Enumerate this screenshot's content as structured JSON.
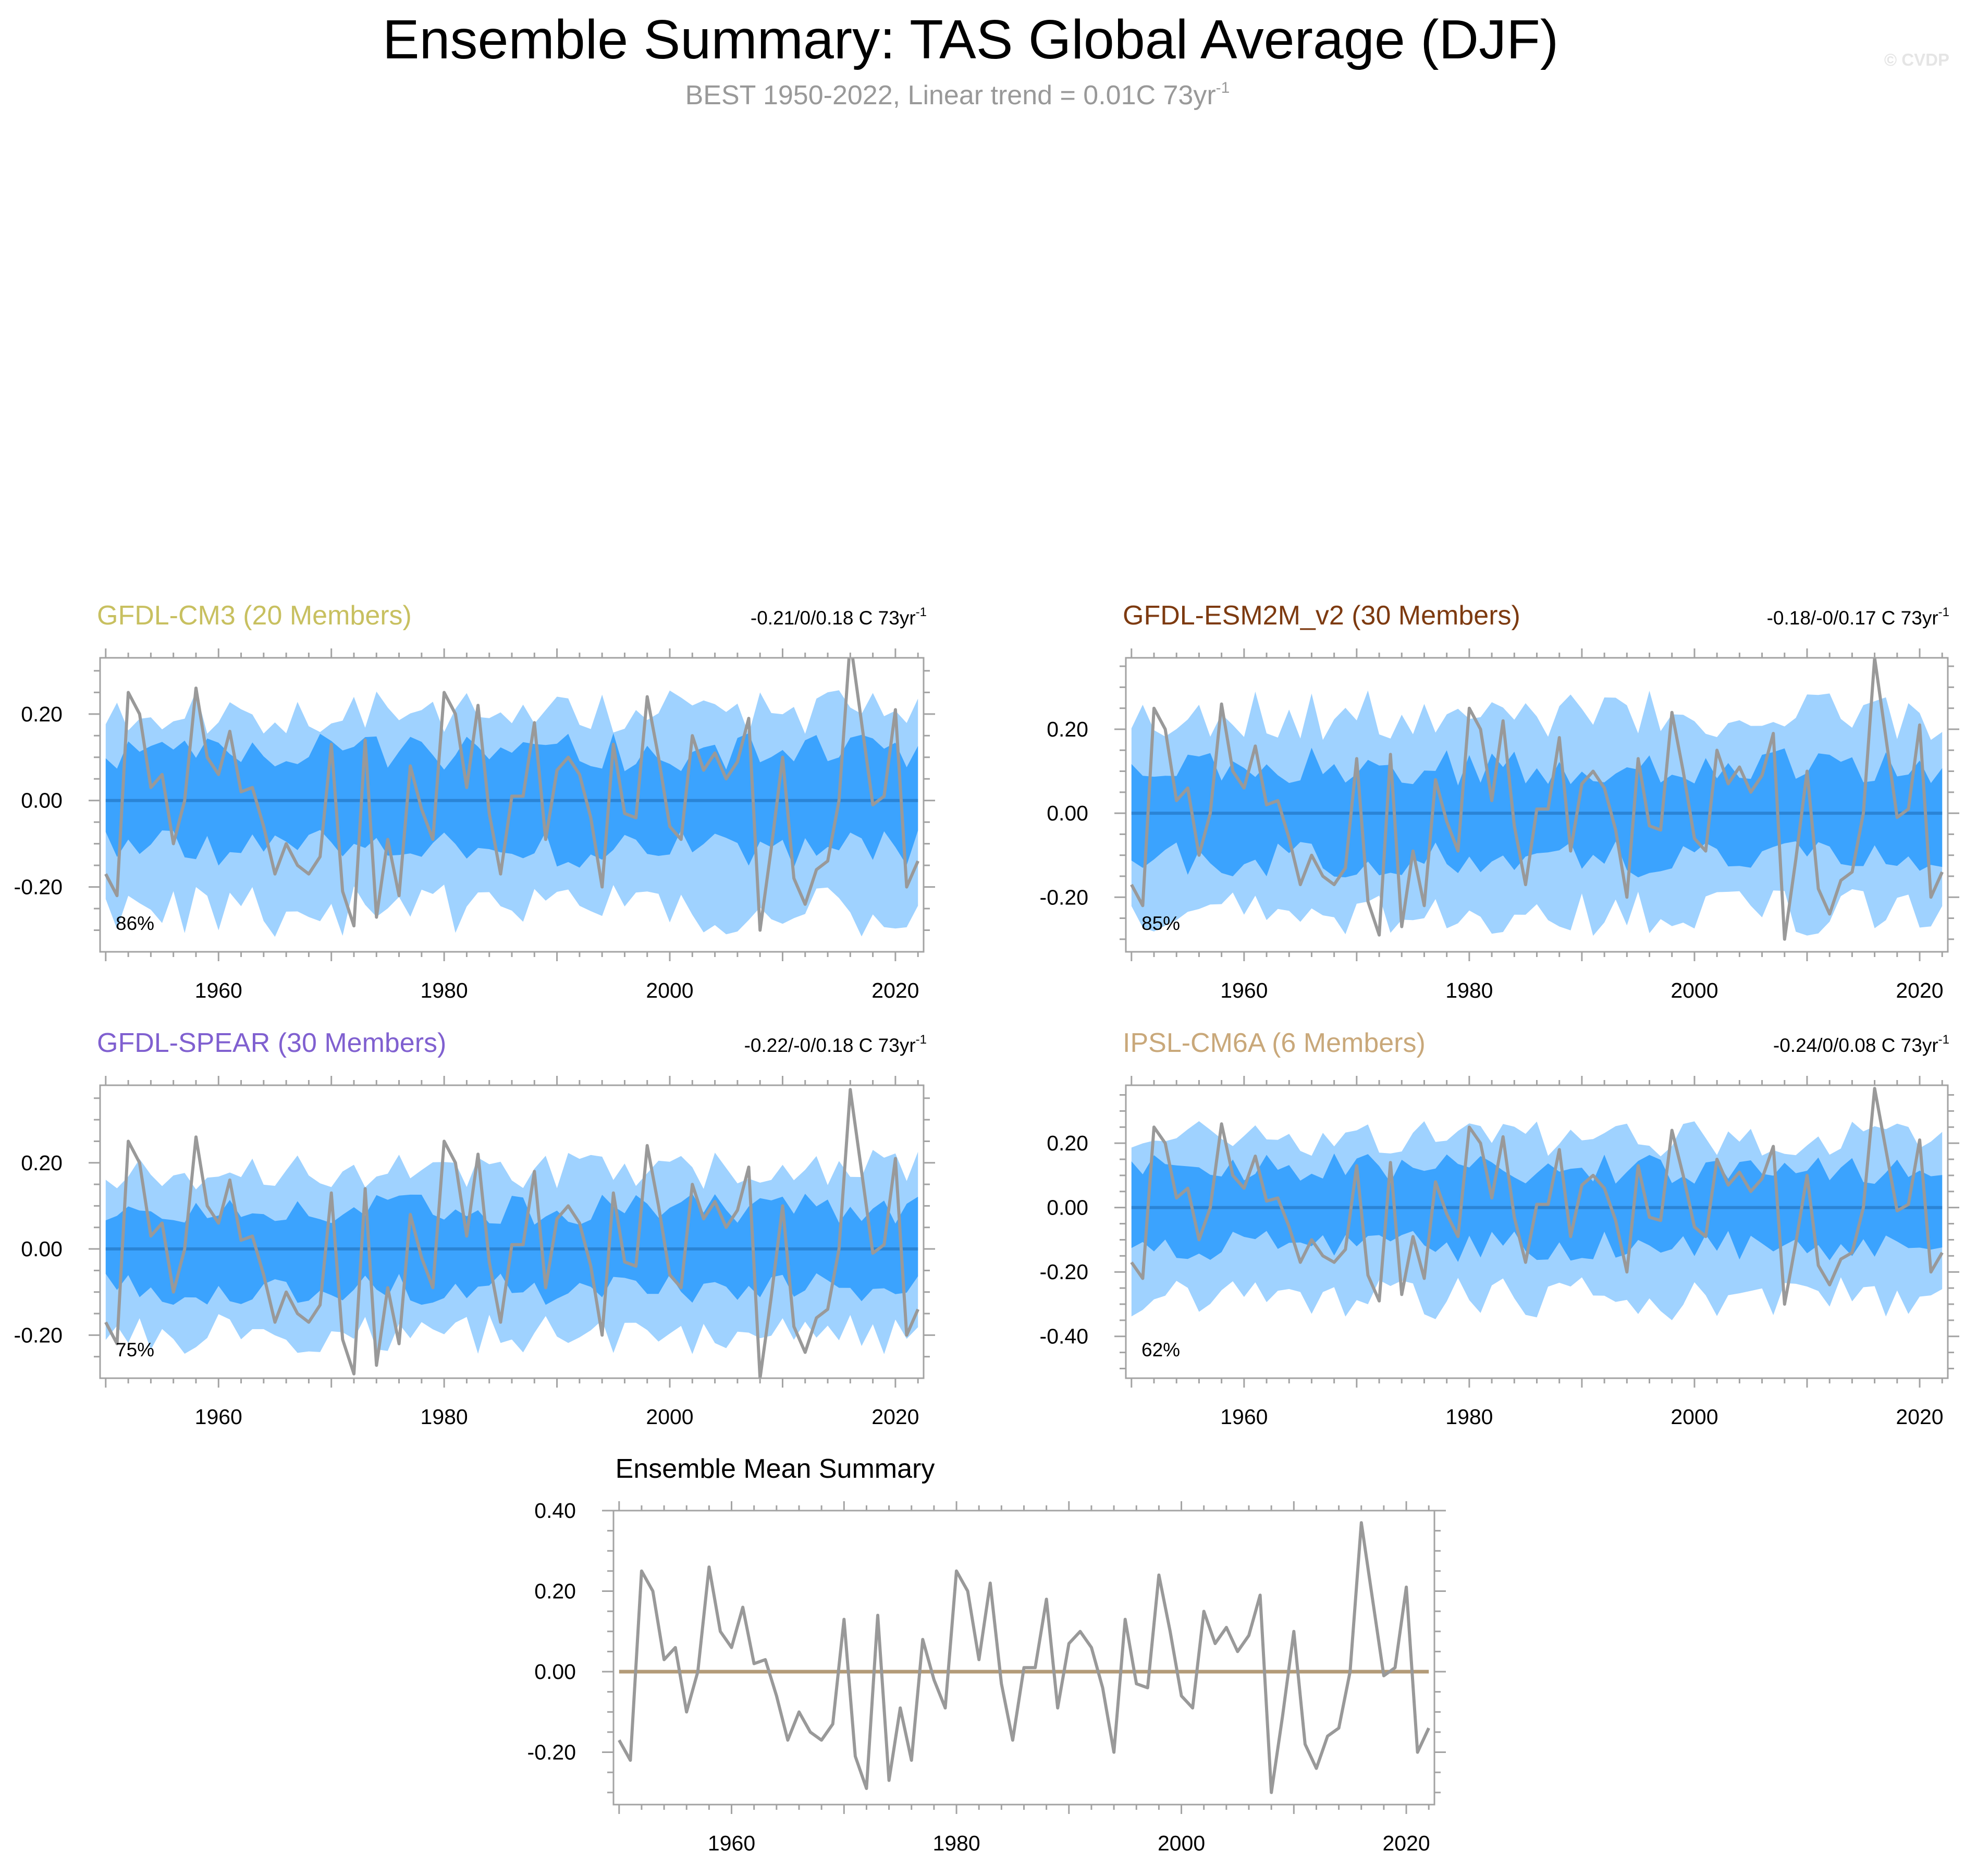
{
  "figure": {
    "title": "Ensemble Summary: TAS Global Average (DJF)",
    "subtitle": "BEST 1950-2022, Linear trend = 0.01C 73yr",
    "subtitle_sup": "-1",
    "watermark": "© CVDP"
  },
  "colors": {
    "outer_band": "#9fd2ff",
    "inner_band": "#3ba3fe",
    "ensemble_mean_line": "#2a84d6",
    "obs_line": "#999999",
    "mean_line_bottom": "#b39b78",
    "axis": "#a3a3a3"
  },
  "chart_data": [
    {
      "type": "line",
      "title": "GFDL-CM3 (20 Members)",
      "title_color": "#c8c060",
      "trend_text": "-0.21/0/0.18 C 73yr",
      "trend_sup": "-1",
      "percent_label": "86%",
      "xlim": [
        1949.5,
        2022.5
      ],
      "ylim": [
        -0.35,
        0.33
      ],
      "yticks": [
        -0.2,
        0.0,
        0.2
      ],
      "ytick_labels": [
        "-0.20",
        "0.00",
        "0.20"
      ],
      "xticks": [
        1960,
        1980,
        2000,
        2020
      ],
      "xtick_labels": [
        "1960",
        "1980",
        "2000",
        "2020"
      ],
      "outer_upper_amp": 0.21,
      "outer_lower_amp": 0.27,
      "inner_amp": 0.12,
      "seed": 11
    },
    {
      "type": "line",
      "title": "GFDL-ESM2M_v2 (30 Members)",
      "title_color": "#7d3a10",
      "trend_text": "-0.18/-0/0.17 C 73yr",
      "trend_sup": "-1",
      "percent_label": "85%",
      "xlim": [
        1949.5,
        2022.5
      ],
      "ylim": [
        -0.33,
        0.37
      ],
      "yticks": [
        -0.2,
        0.0,
        0.2
      ],
      "ytick_labels": [
        "-0.20",
        "0.00",
        "0.20"
      ],
      "xticks": [
        1960,
        1980,
        2000,
        2020
      ],
      "xtick_labels": [
        "1960",
        "1980",
        "2000",
        "2020"
      ],
      "outer_upper_amp": 0.24,
      "outer_lower_amp": 0.25,
      "inner_amp": 0.12,
      "seed": 23
    },
    {
      "type": "line",
      "title": "GFDL-SPEAR (30 Members)",
      "title_color": "#8060d0",
      "trend_text": "-0.22/-0/0.18 C 73yr",
      "trend_sup": "-1",
      "percent_label": "75%",
      "xlim": [
        1949.5,
        2022.5
      ],
      "ylim": [
        -0.3,
        0.38
      ],
      "yticks": [
        -0.2,
        0.0,
        0.2
      ],
      "ytick_labels": [
        "-0.20",
        "0.00",
        "0.20"
      ],
      "xticks": [
        1960,
        1980,
        2000,
        2020
      ],
      "xtick_labels": [
        "1960",
        "1980",
        "2000",
        "2020"
      ],
      "outer_upper_amp": 0.19,
      "outer_lower_amp": 0.21,
      "inner_amp": 0.1,
      "seed": 37
    },
    {
      "type": "line",
      "title": "IPSL-CM6A (6 Members)",
      "title_color": "#c9a87a",
      "trend_text": "-0.24/0/0.08 C 73yr",
      "trend_sup": "-1",
      "percent_label": "62%",
      "xlim": [
        1949.5,
        2022.5
      ],
      "ylim": [
        -0.53,
        0.38
      ],
      "yticks": [
        -0.4,
        -0.2,
        0.0,
        0.2
      ],
      "ytick_labels": [
        "-0.40",
        "-0.20",
        "0.00",
        "0.20"
      ],
      "xticks": [
        1960,
        1980,
        2000,
        2020
      ],
      "xtick_labels": [
        "1960",
        "1980",
        "2000",
        "2020"
      ],
      "outer_upper_amp": 0.22,
      "outer_lower_amp": 0.3,
      "inner_amp": 0.13,
      "seed": 51
    },
    {
      "type": "line",
      "title": "Ensemble Mean Summary",
      "title_color": "#000000",
      "xlim": [
        1949.5,
        2022.5
      ],
      "ylim": [
        -0.33,
        0.4
      ],
      "yticks": [
        -0.2,
        0.0,
        0.2,
        0.4
      ],
      "ytick_labels": [
        "-0.20",
        "0.00",
        "0.20",
        "0.40"
      ],
      "xticks": [
        1960,
        1980,
        2000,
        2020
      ],
      "xtick_labels": [
        "1960",
        "1980",
        "2000",
        "2020"
      ],
      "mean_series": "zero line"
    }
  ],
  "observations": {
    "name": "BEST",
    "x": [
      1950,
      1951,
      1952,
      1953,
      1954,
      1955,
      1956,
      1957,
      1958,
      1959,
      1960,
      1961,
      1962,
      1963,
      1964,
      1965,
      1966,
      1967,
      1968,
      1969,
      1970,
      1971,
      1972,
      1973,
      1974,
      1975,
      1976,
      1977,
      1978,
      1979,
      1980,
      1981,
      1982,
      1983,
      1984,
      1985,
      1986,
      1987,
      1988,
      1989,
      1990,
      1991,
      1992,
      1993,
      1994,
      1995,
      1996,
      1997,
      1998,
      1999,
      2000,
      2001,
      2002,
      2003,
      2004,
      2005,
      2006,
      2007,
      2008,
      2009,
      2010,
      2011,
      2012,
      2013,
      2014,
      2015,
      2016,
      2017,
      2018,
      2019,
      2020,
      2021,
      2022
    ],
    "values": [
      -0.17,
      -0.22,
      0.25,
      0.2,
      0.03,
      0.06,
      -0.1,
      0.0,
      0.26,
      0.1,
      0.06,
      0.16,
      0.02,
      0.03,
      -0.06,
      -0.17,
      -0.1,
      -0.15,
      -0.17,
      -0.13,
      0.13,
      -0.21,
      -0.29,
      0.14,
      -0.27,
      -0.09,
      -0.22,
      0.08,
      -0.02,
      -0.09,
      0.25,
      0.2,
      0.03,
      0.22,
      -0.03,
      -0.17,
      0.01,
      0.01,
      0.18,
      -0.09,
      0.07,
      0.1,
      0.06,
      -0.04,
      -0.2,
      0.13,
      -0.03,
      -0.04,
      0.24,
      0.1,
      -0.06,
      -0.09,
      0.15,
      0.07,
      0.11,
      0.05,
      0.09,
      0.19,
      -0.3,
      -0.11,
      0.1,
      -0.18,
      -0.24,
      -0.16,
      -0.14,
      0.0,
      0.37,
      0.18,
      -0.01,
      0.01,
      0.21,
      -0.2,
      -0.14
    ]
  }
}
